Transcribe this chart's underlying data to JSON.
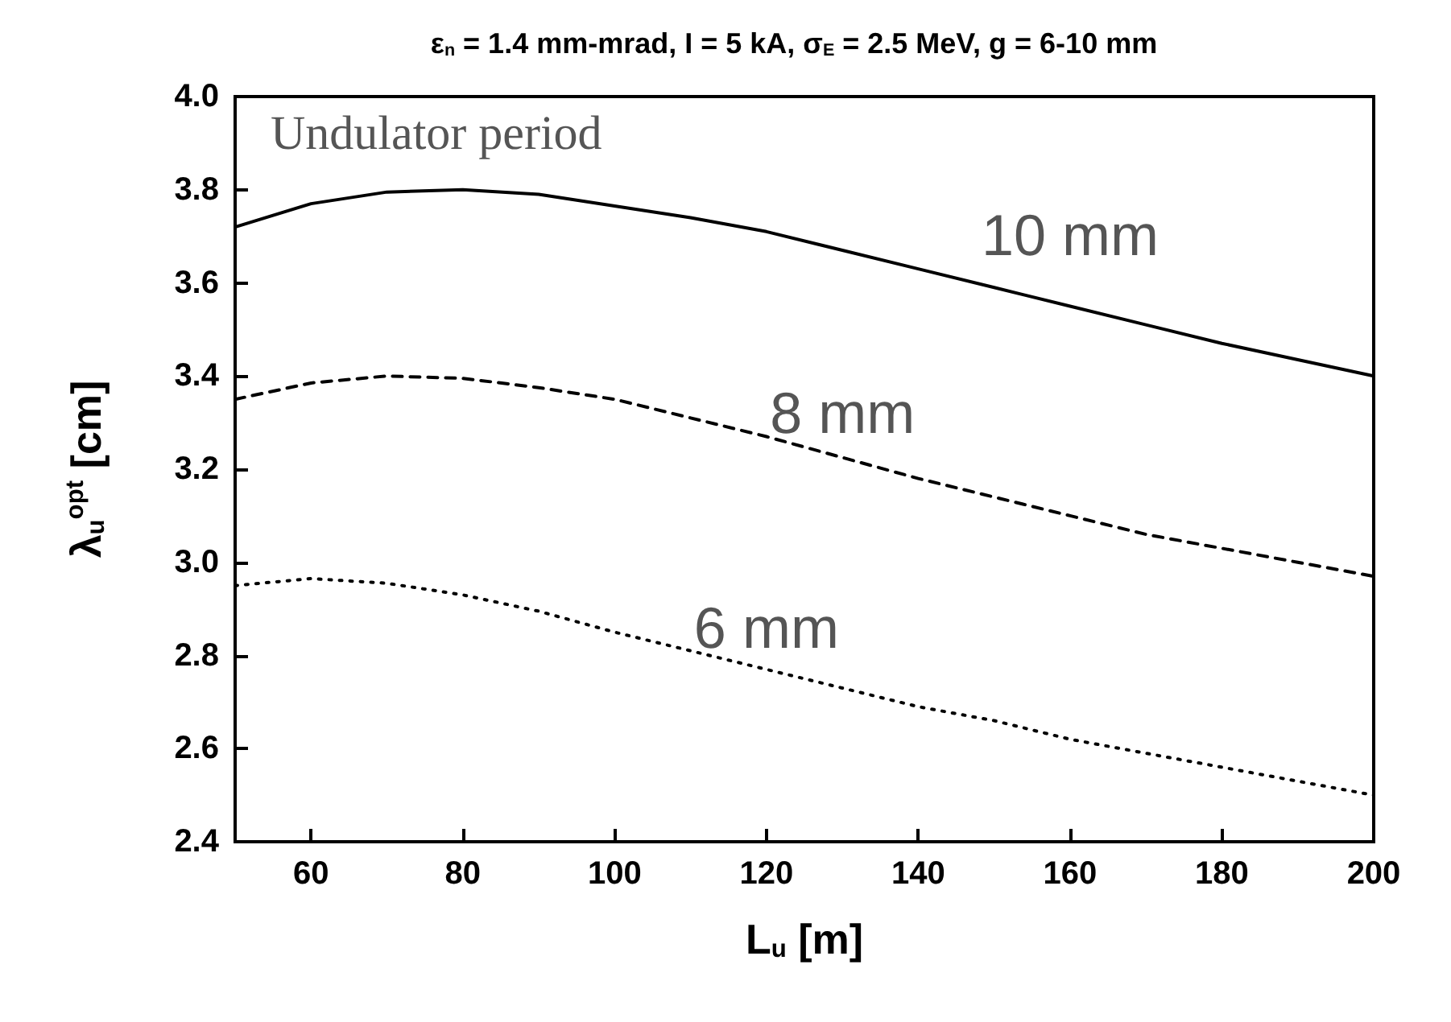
{
  "chart_data": {
    "type": "line",
    "title": "ε$_{n}$ = 1.4 mm-mrad, I = 5 kA, σ$_{E}$ = 2.5 MeV, g = 6-10 mm",
    "xlabel": "L$_{u}$ [m]",
    "ylabel": "λ$_{u}$$^{opt}$ [cm]",
    "x": [
      50,
      60,
      70,
      80,
      90,
      100,
      110,
      120,
      130,
      140,
      150,
      160,
      170,
      180,
      190,
      200
    ],
    "series": [
      {
        "name": "10 mm",
        "color": "#000000",
        "line_style": "solid",
        "values": [
          3.72,
          3.77,
          3.795,
          3.8,
          3.79,
          3.765,
          3.74,
          3.71,
          3.67,
          3.63,
          3.59,
          3.55,
          3.51,
          3.47,
          3.435,
          3.4
        ]
      },
      {
        "name": "8 mm",
        "color": "#000000",
        "line_style": "dashed",
        "values": [
          3.35,
          3.385,
          3.4,
          3.395,
          3.375,
          3.35,
          3.31,
          3.27,
          3.225,
          3.18,
          3.14,
          3.1,
          3.06,
          3.03,
          3.0,
          2.97
        ]
      },
      {
        "name": "6 mm",
        "color": "#000000",
        "line_style": "dotted",
        "values": [
          2.95,
          2.965,
          2.955,
          2.93,
          2.895,
          2.85,
          2.81,
          2.77,
          2.73,
          2.69,
          2.66,
          2.62,
          2.59,
          2.56,
          2.53,
          2.5
        ]
      }
    ],
    "annotations": [
      "Undulator period"
    ],
    "xlim": [
      50,
      200
    ],
    "xticks": [
      60,
      80,
      100,
      120,
      140,
      160,
      180,
      200
    ],
    "ylim": [
      2.4,
      4.0
    ],
    "yticks": [
      2.4,
      2.6,
      2.8,
      {
        "value": 3,
        "label": "3.0"
      },
      3.2,
      3.4,
      3.6,
      3.8,
      {
        "value": 4,
        "label": "4.0"
      }
    ],
    "grid": false,
    "legend": false,
    "marker": "none"
  }
}
